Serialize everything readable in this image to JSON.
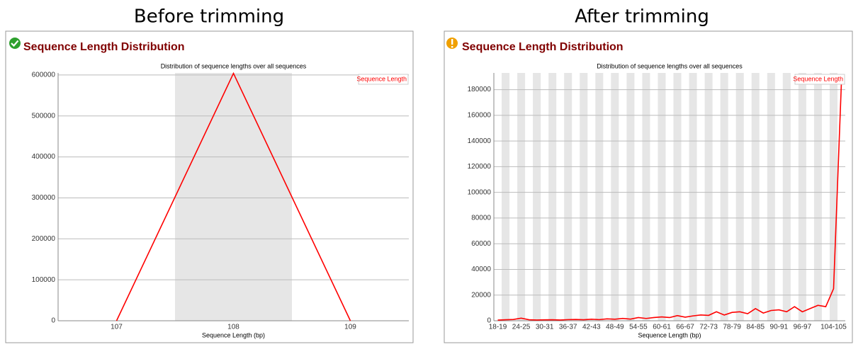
{
  "headings": [
    "Before trimming",
    "After trimming"
  ],
  "chart_data": [
    {
      "type": "line",
      "title": "Sequence Length Distribution",
      "subtitle": "Distribution of sequence lengths over all sequences",
      "xlabel": "Sequence Length (bp)",
      "categories": [
        "107",
        "108",
        "109"
      ],
      "series": [
        {
          "name": "Sequence Length",
          "color": "#ff0000",
          "values": [
            0,
            604000,
            0
          ]
        }
      ],
      "ylim": [
        0,
        605000
      ],
      "yticks": [
        0,
        100000,
        200000,
        300000,
        400000,
        500000,
        600000
      ],
      "grid": true,
      "legend": "upper right"
    },
    {
      "type": "line",
      "title": "Sequence Length Distribution",
      "subtitle": "Distribution of sequence lengths over all sequences",
      "xlabel": "Sequence Length (bp)",
      "categories": [
        "18-19",
        null,
        null,
        "24-25",
        null,
        null,
        "30-31",
        null,
        null,
        "36-37",
        null,
        null,
        "42-43",
        null,
        null,
        "48-49",
        null,
        null,
        "54-55",
        null,
        null,
        "60-61",
        null,
        null,
        "66-67",
        null,
        null,
        "72-73",
        null,
        null,
        "78-79",
        null,
        null,
        "84-85",
        null,
        null,
        "90-91",
        null,
        null,
        "96-97",
        null,
        null,
        null,
        "104-105",
        null
      ],
      "series": [
        {
          "name": "Sequence Length",
          "color": "#ff0000",
          "values": [
            500,
            800,
            1000,
            2000,
            800,
            600,
            700,
            800,
            600,
            900,
            1000,
            800,
            1200,
            900,
            1500,
            1200,
            1800,
            1300,
            2500,
            1800,
            2500,
            3000,
            2500,
            4000,
            2800,
            3800,
            4500,
            4200,
            7000,
            4500,
            6500,
            7000,
            5500,
            9500,
            6000,
            8000,
            8500,
            7000,
            11000,
            7000,
            9500,
            12000,
            11000,
            25000,
            185000
          ]
        }
      ],
      "ylim": [
        0,
        193000
      ],
      "yticks": [
        0,
        20000,
        40000,
        60000,
        80000,
        100000,
        120000,
        140000,
        160000,
        180000
      ],
      "grid": true,
      "legend": "upper right"
    }
  ]
}
